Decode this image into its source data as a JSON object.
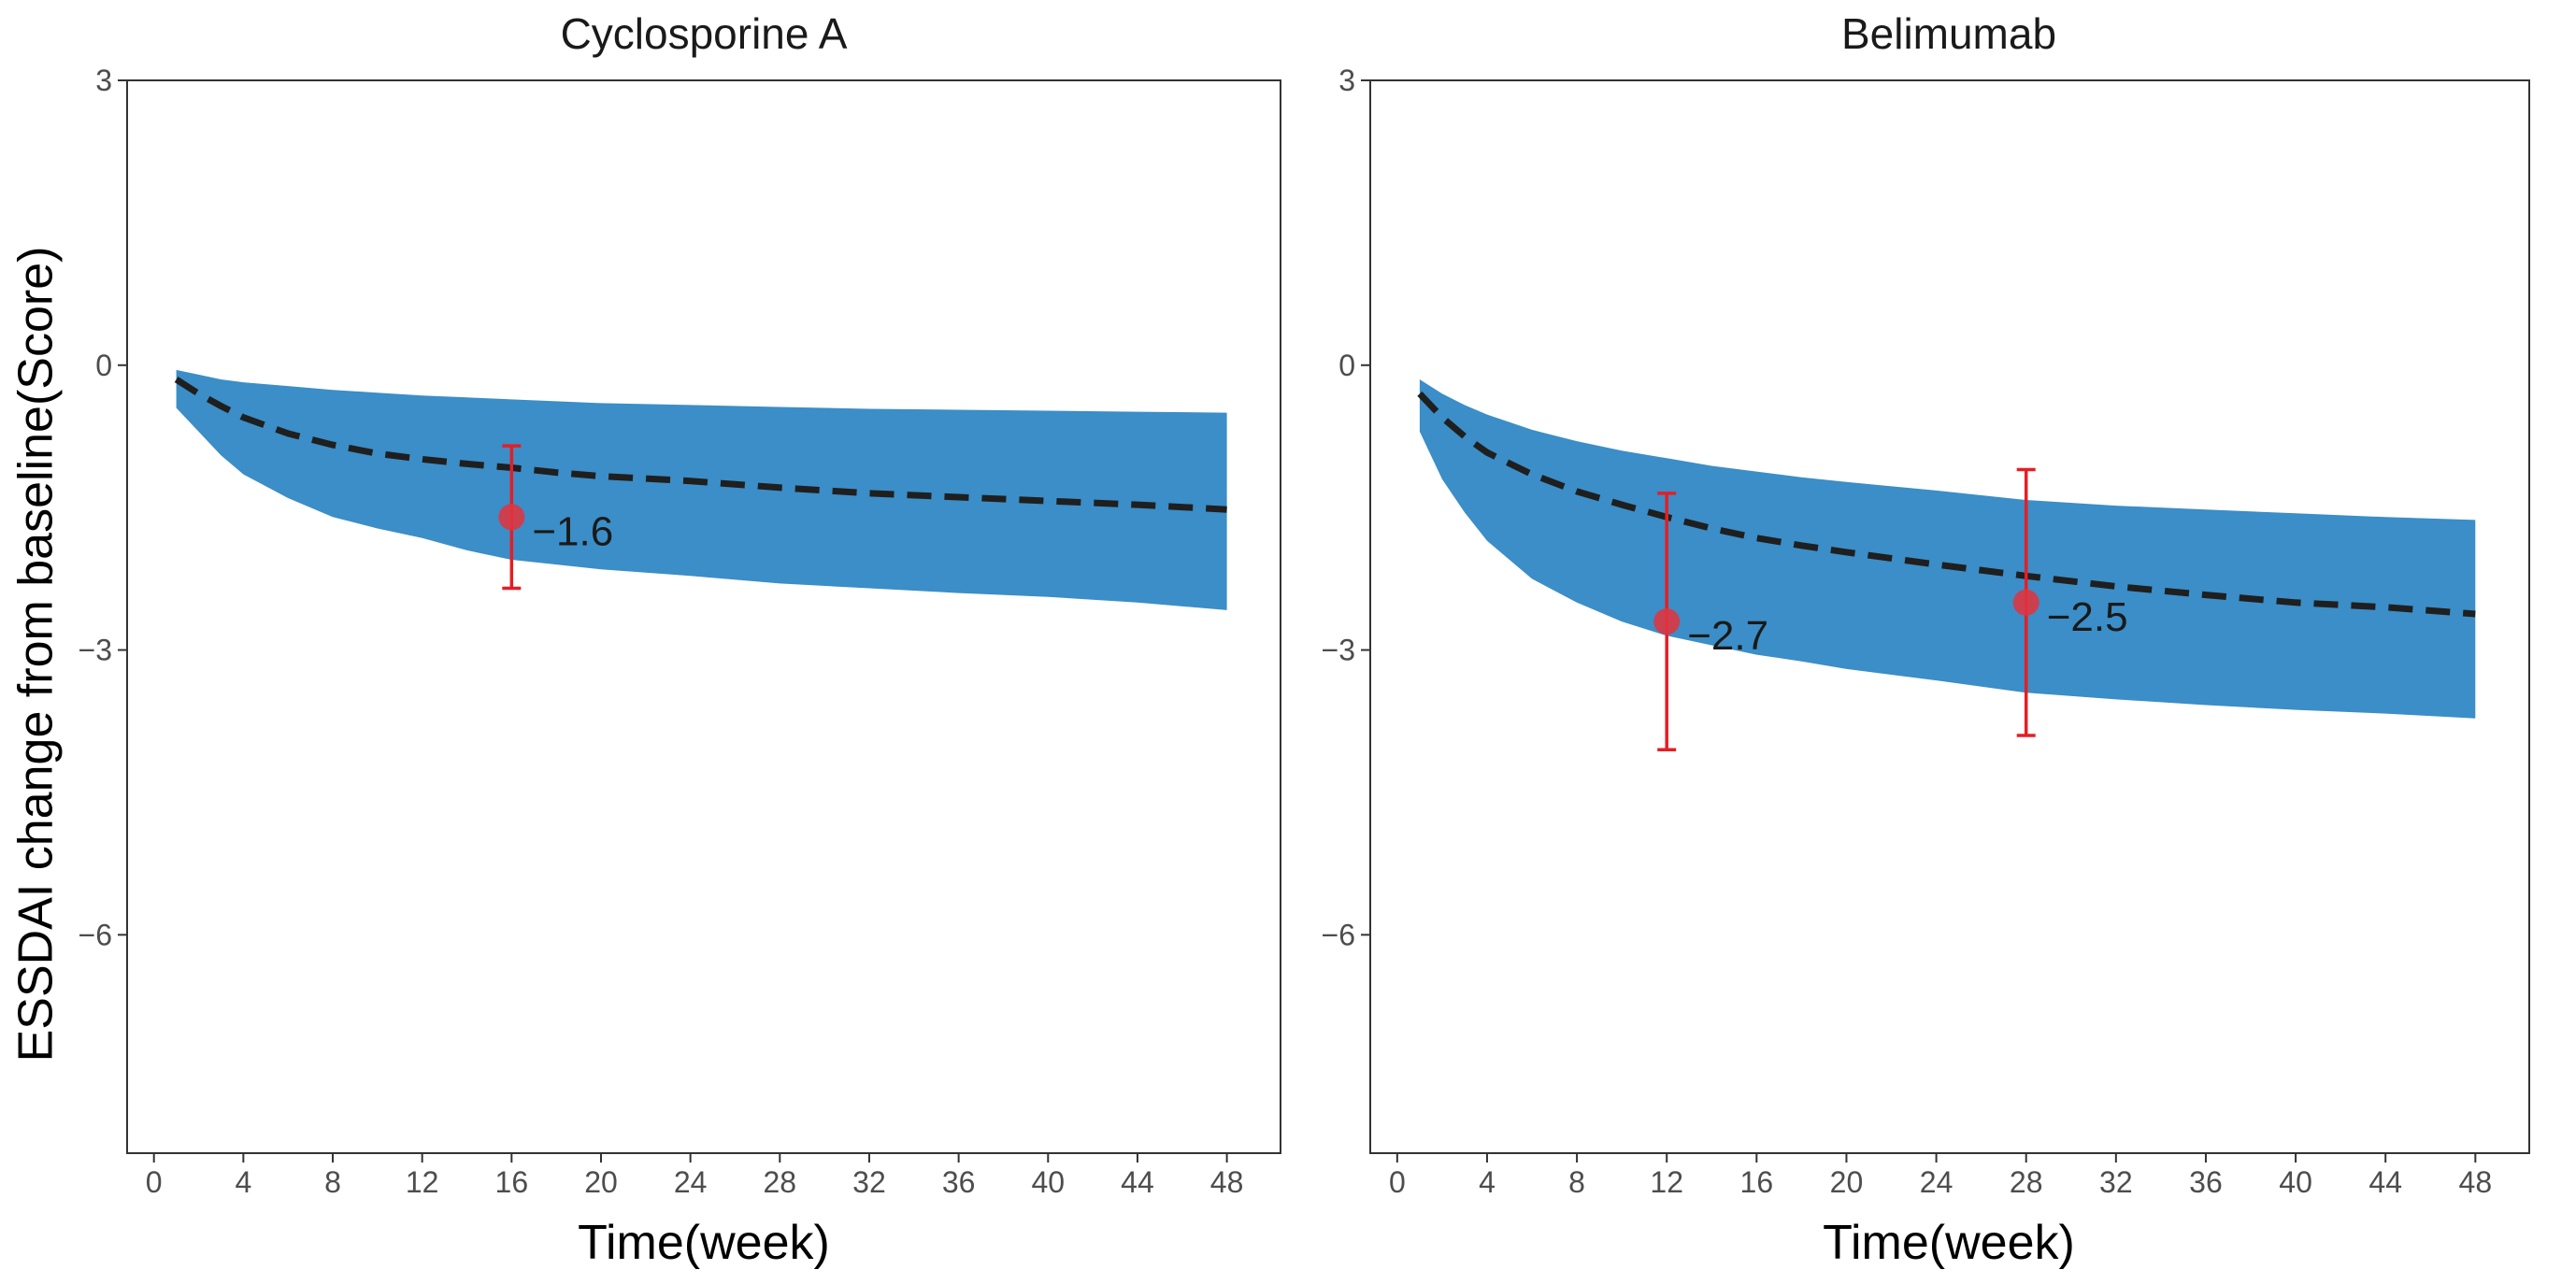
{
  "chart_data": [
    {
      "type": "line",
      "title": "Cyclosporine A",
      "xlabel": "Time(week)",
      "ylabel": "ESSDAI change from baseline(Score)",
      "xlim": [
        -1.2,
        50.4
      ],
      "ylim": [
        -8.3,
        3
      ],
      "xticks": [
        0,
        4,
        8,
        12,
        16,
        20,
        24,
        28,
        32,
        36,
        40,
        44,
        48
      ],
      "xtick_labels": [
        "0",
        "4",
        "8",
        "12",
        "16",
        "20",
        "24",
        "28",
        "32",
        "36",
        "40",
        "44",
        "48"
      ],
      "yticks": [
        3,
        0,
        -3,
        -6
      ],
      "ytick_labels": [
        "3",
        "0",
        "−3",
        "−6"
      ],
      "grid": false,
      "band_color": "#3b8ec7",
      "line_color": "#1f1f1f",
      "point_color": "#e0343f",
      "errorbar_color": "#e51e25",
      "band": {
        "x": [
          1,
          2,
          3,
          4,
          6,
          8,
          10,
          12,
          14,
          16,
          18,
          20,
          24,
          28,
          32,
          36,
          40,
          44,
          48
        ],
        "upper": [
          -0.05,
          -0.1,
          -0.15,
          -0.18,
          -0.22,
          -0.26,
          -0.29,
          -0.32,
          -0.34,
          -0.36,
          -0.38,
          -0.4,
          -0.42,
          -0.44,
          -0.46,
          -0.47,
          -0.48,
          -0.49,
          -0.5
        ],
        "lower": [
          -0.45,
          -0.7,
          -0.95,
          -1.15,
          -1.4,
          -1.6,
          -1.72,
          -1.82,
          -1.95,
          -2.05,
          -2.1,
          -2.15,
          -2.22,
          -2.3,
          -2.35,
          -2.4,
          -2.44,
          -2.5,
          -2.58
        ]
      },
      "mean_line": {
        "x": [
          1,
          2,
          3,
          4,
          6,
          8,
          10,
          12,
          14,
          16,
          18,
          20,
          24,
          28,
          32,
          36,
          40,
          44,
          48
        ],
        "y": [
          -0.15,
          -0.3,
          -0.43,
          -0.55,
          -0.72,
          -0.84,
          -0.93,
          -0.99,
          -1.04,
          -1.08,
          -1.13,
          -1.17,
          -1.22,
          -1.29,
          -1.35,
          -1.39,
          -1.43,
          -1.47,
          -1.52
        ]
      },
      "observed": [
        {
          "x": 16,
          "y": -1.6,
          "ci_low": -2.35,
          "ci_high": -0.85,
          "label": "−1.6"
        }
      ]
    },
    {
      "type": "line",
      "title": "Belimumab",
      "xlabel": "Time(week)",
      "ylabel": "",
      "xlim": [
        -1.2,
        50.4
      ],
      "ylim": [
        -8.3,
        3
      ],
      "xticks": [
        0,
        4,
        8,
        12,
        16,
        20,
        24,
        28,
        32,
        36,
        40,
        44,
        48
      ],
      "xtick_labels": [
        "0",
        "4",
        "8",
        "12",
        "16",
        "20",
        "24",
        "28",
        "32",
        "36",
        "40",
        "44",
        "48"
      ],
      "yticks": [
        3,
        0,
        -3,
        -6
      ],
      "ytick_labels": [
        "3",
        "0",
        "−3",
        "−6"
      ],
      "grid": false,
      "band_color": "#3b8ec7",
      "line_color": "#1f1f1f",
      "point_color": "#e0343f",
      "errorbar_color": "#e51e25",
      "band": {
        "x": [
          1,
          2,
          3,
          4,
          6,
          8,
          10,
          12,
          14,
          16,
          18,
          20,
          24,
          28,
          32,
          36,
          40,
          44,
          48
        ],
        "upper": [
          -0.15,
          -0.3,
          -0.42,
          -0.52,
          -0.68,
          -0.8,
          -0.9,
          -0.98,
          -1.06,
          -1.12,
          -1.18,
          -1.23,
          -1.32,
          -1.42,
          -1.48,
          -1.52,
          -1.56,
          -1.6,
          -1.63
        ]
      },
      "band_lower": [
        -0.7,
        -1.2,
        -1.55,
        -1.85,
        -2.25,
        -2.5,
        -2.7,
        -2.85,
        -2.95,
        -3.05,
        -3.12,
        -3.2,
        -3.32,
        -3.45,
        -3.52,
        -3.58,
        -3.63,
        -3.67,
        -3.72
      ],
      "mean_line": {
        "x": [
          1,
          2,
          3,
          4,
          6,
          8,
          10,
          12,
          14,
          16,
          18,
          20,
          24,
          28,
          32,
          36,
          40,
          44,
          48
        ],
        "y": [
          -0.3,
          -0.55,
          -0.75,
          -0.92,
          -1.15,
          -1.33,
          -1.47,
          -1.6,
          -1.72,
          -1.82,
          -1.9,
          -1.97,
          -2.1,
          -2.22,
          -2.33,
          -2.42,
          -2.5,
          -2.55,
          -2.62
        ]
      },
      "observed": [
        {
          "x": 12,
          "y": -2.7,
          "ci_low": -4.05,
          "ci_high": -1.35,
          "label": "−2.7"
        },
        {
          "x": 28,
          "y": -2.5,
          "ci_low": -3.9,
          "ci_high": -1.1,
          "label": "−2.5"
        }
      ]
    }
  ]
}
